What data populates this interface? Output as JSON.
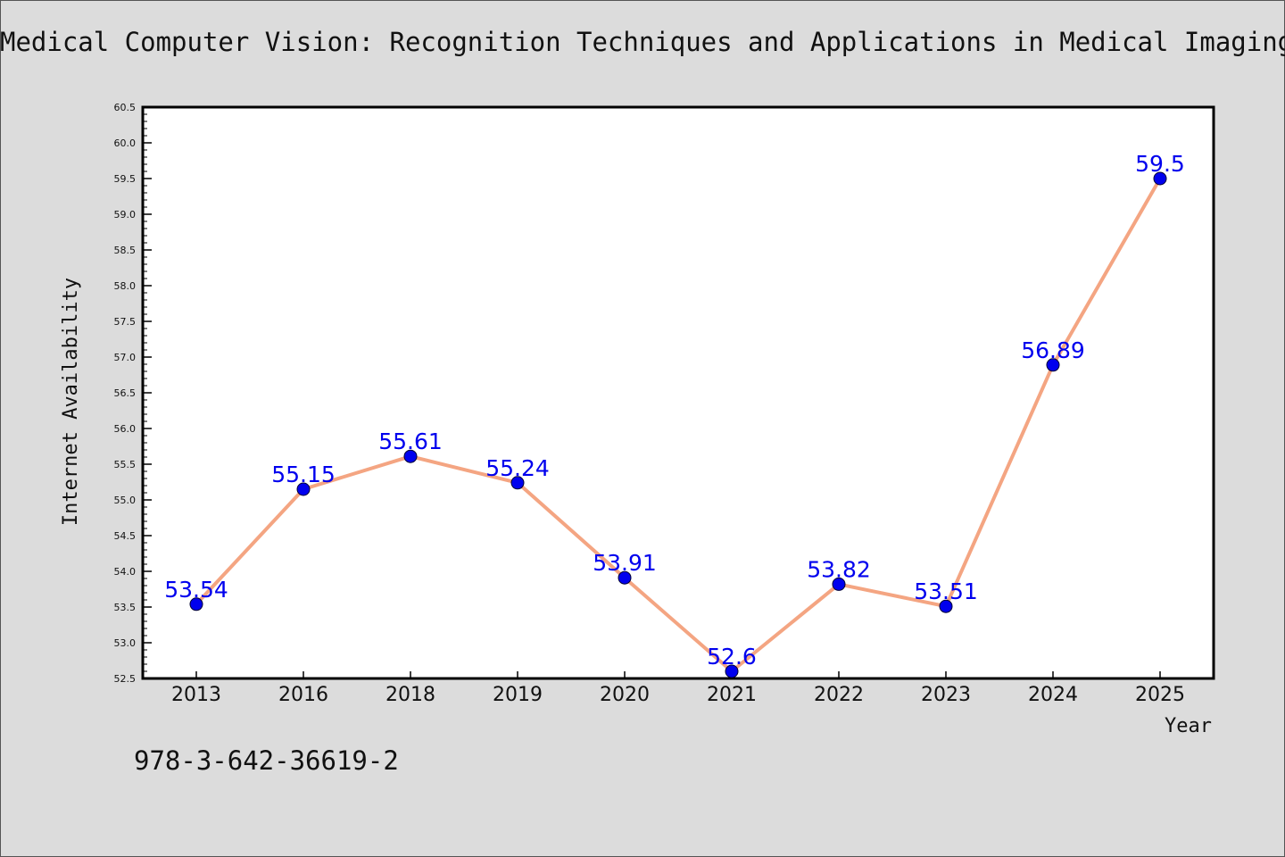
{
  "chart_data": {
    "type": "line",
    "title": "Medical Computer Vision: Recognition Techniques and Applications in Medical Imaging",
    "xlabel": "Year",
    "ylabel": "Internet Availability",
    "categories": [
      "2013",
      "2016",
      "2018",
      "2019",
      "2020",
      "2021",
      "2022",
      "2023",
      "2024",
      "2025"
    ],
    "series": [
      {
        "values": [
          53.54,
          55.15,
          55.61,
          55.24,
          53.91,
          52.6,
          53.82,
          53.51,
          56.89,
          59.5
        ],
        "data_labels": [
          "53.54",
          "55.15",
          "55.61",
          "55.24",
          "53.91",
          "52.6",
          "53.82",
          "53.51",
          "56.89",
          "59.5"
        ],
        "line_color": "#f4a582",
        "marker_color": "#0000ee"
      }
    ],
    "ylim": [
      52.5,
      60.5
    ],
    "yticks": [
      "52.5",
      "53.0",
      "53.5",
      "54.0",
      "54.5",
      "55.0",
      "55.5",
      "56.0",
      "56.5",
      "57.0",
      "57.5",
      "58.0",
      "58.5",
      "59.0",
      "59.5",
      "60.0",
      "60.5"
    ],
    "grid": false,
    "legend": "none",
    "background": "#dcdcdc",
    "plot_background": "#ffffff"
  },
  "footer": {
    "isbn": "978-3-642-36619-2"
  }
}
